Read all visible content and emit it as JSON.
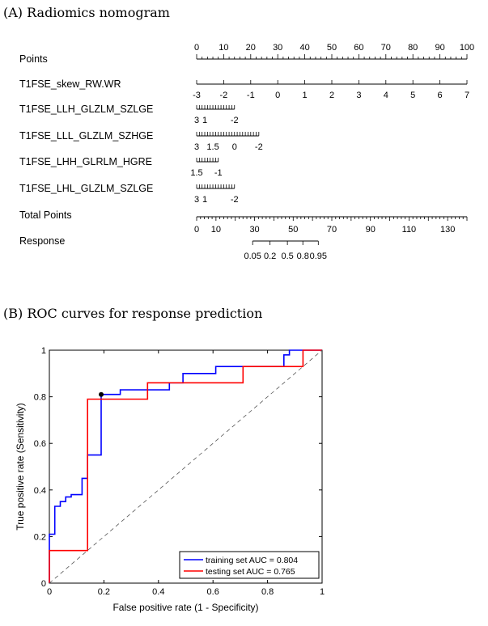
{
  "chart_data": [
    {
      "type": "nomogram",
      "title": "(A) Radiomics nomogram",
      "axes": [
        {
          "name": "Points",
          "ticks": [
            {
              "v": 0,
              "label": "0"
            },
            {
              "v": 10,
              "label": "10"
            },
            {
              "v": 20,
              "label": "20"
            },
            {
              "v": 30,
              "label": "30"
            },
            {
              "v": 40,
              "label": "40"
            },
            {
              "v": 50,
              "label": "50"
            },
            {
              "v": 60,
              "label": "60"
            },
            {
              "v": 70,
              "label": "70"
            },
            {
              "v": 80,
              "label": "80"
            },
            {
              "v": 90,
              "label": "90"
            },
            {
              "v": 100,
              "label": "100"
            }
          ]
        },
        {
          "name": "T1FSE_skew_RW.WR",
          "ticks": [
            {
              "p": 0,
              "label": "-3"
            },
            {
              "p": 10,
              "label": "-2"
            },
            {
              "p": 20,
              "label": "-1"
            },
            {
              "p": 30,
              "label": "0"
            },
            {
              "p": 40,
              "label": "1"
            },
            {
              "p": 50,
              "label": "2"
            },
            {
              "p": 60,
              "label": "3"
            },
            {
              "p": 70,
              "label": "4"
            },
            {
              "p": 80,
              "label": "5"
            },
            {
              "p": 90,
              "label": "6"
            },
            {
              "p": 100,
              "label": "7"
            }
          ]
        },
        {
          "name": "T1FSE_LLH_GLZLM_SZLGE",
          "ticks": [
            {
              "p": 0,
              "label": "3"
            },
            {
              "p": 3,
              "label": "1"
            },
            {
              "p": 14,
              "label": "-2"
            }
          ]
        },
        {
          "name": "T1FSE_LLL_GLZLM_SZHGE",
          "ticks": [
            {
              "p": 0,
              "label": "3"
            },
            {
              "p": 6,
              "label": "1.5"
            },
            {
              "p": 14,
              "label": "0"
            },
            {
              "p": 23,
              "label": "-2"
            }
          ]
        },
        {
          "name": "T1FSE_LHH_GLRLM_HGRE",
          "ticks": [
            {
              "p": 0,
              "label": "1.5"
            },
            {
              "p": 8,
              "label": "-1"
            }
          ]
        },
        {
          "name": "T1FSE_LHL_GLZLM_SZLGE",
          "ticks": [
            {
              "p": 0,
              "label": "3"
            },
            {
              "p": 3,
              "label": "1"
            },
            {
              "p": 14,
              "label": "-2"
            }
          ]
        },
        {
          "name": "Total Points",
          "range": [
            0,
            140
          ],
          "ticks": [
            {
              "v": 0,
              "label": "0"
            },
            {
              "v": 10,
              "label": "10"
            },
            {
              "v": 30,
              "label": "30"
            },
            {
              "v": 50,
              "label": "50"
            },
            {
              "v": 70,
              "label": "70"
            },
            {
              "v": 90,
              "label": "90"
            },
            {
              "v": 110,
              "label": "110"
            },
            {
              "v": 130,
              "label": "130"
            }
          ]
        },
        {
          "name": "Response",
          "ticks": [
            {
              "tp": 29,
              "label": "0.05"
            },
            {
              "tp": 38,
              "label": "0.2"
            },
            {
              "tp": 47,
              "label": "0.5"
            },
            {
              "tp": 55,
              "label": "0.8"
            },
            {
              "tp": 63,
              "label": "0.95"
            }
          ]
        }
      ]
    },
    {
      "type": "line",
      "title": "(B) ROC curves for response prediction",
      "xlabel": "False positive rate (1 - Specificity)",
      "ylabel": "True positive rate (Sensitivity)",
      "xlim": [
        0,
        1
      ],
      "ylim": [
        0,
        1
      ],
      "xticks": [
        "0",
        "0.2",
        "0.4",
        "0.6",
        "0.8",
        "1"
      ],
      "yticks": [
        "0",
        "0.2",
        "0.4",
        "0.6",
        "0.8",
        "1"
      ],
      "series": [
        {
          "name": "training set AUC = 0.804",
          "color": "#0000ff",
          "x": [
            0,
            0,
            0.02,
            0.02,
            0.04,
            0.04,
            0.06,
            0.06,
            0.08,
            0.08,
            0.12,
            0.12,
            0.14,
            0.14,
            0.19,
            0.19,
            0.26,
            0.26,
            0.36,
            0.36,
            0.44,
            0.44,
            0.49,
            0.49,
            0.61,
            0.61,
            0.86,
            0.86,
            0.88,
            0.88,
            1,
            1
          ],
          "y": [
            0,
            0.21,
            0.21,
            0.33,
            0.33,
            0.35,
            0.35,
            0.37,
            0.37,
            0.38,
            0.38,
            0.45,
            0.45,
            0.55,
            0.55,
            0.81,
            0.81,
            0.83,
            0.83,
            0.83,
            0.83,
            0.86,
            0.86,
            0.9,
            0.9,
            0.93,
            0.93,
            0.98,
            0.98,
            1,
            1,
            1
          ]
        },
        {
          "name": "testing set AUC = 0.765",
          "color": "#ff0000",
          "x": [
            0,
            0,
            0.14,
            0.14,
            0.36,
            0.36,
            0.71,
            0.71,
            0.93,
            0.93,
            1
          ],
          "y": [
            0,
            0.14,
            0.14,
            0.79,
            0.79,
            0.86,
            0.86,
            0.93,
            0.93,
            1,
            1
          ]
        },
        {
          "name": "reference",
          "color": "#555555",
          "x": [
            0,
            1
          ],
          "y": [
            0,
            1
          ]
        }
      ],
      "marker": {
        "x": 0.19,
        "y": 0.81,
        "color": "#000000"
      },
      "legend_position": "bottom-right"
    }
  ]
}
